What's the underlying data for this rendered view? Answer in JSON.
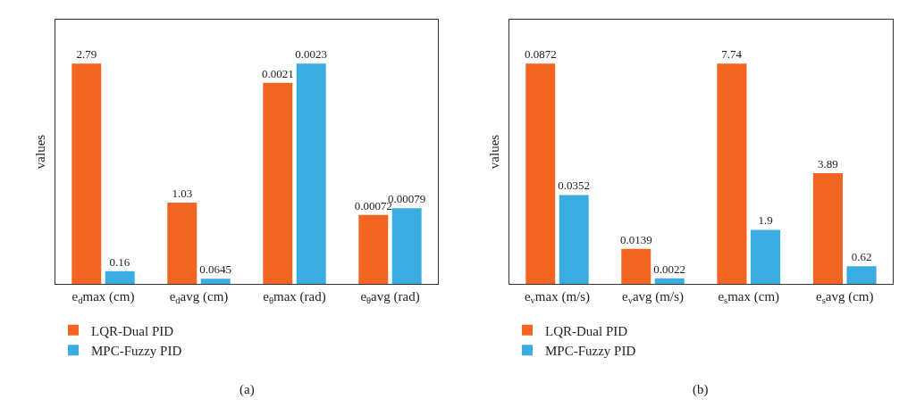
{
  "chart_data": [
    {
      "type": "bar",
      "ylabel": "values",
      "data_labels": true,
      "legend": "bottom left",
      "grid": false,
      "categories": [
        "e$_{d}$max (cm)",
        "e$_{d}$avg (cm)"
      ],
      "series": [
        {
          "name": "LQR-Dual PID",
          "color": "#f26522",
          "values": [
            2.79,
            1.03
          ]
        },
        {
          "name": "MPC-Fuzzy PID",
          "color": "#39ace1",
          "values": [
            0.16,
            0.0645
          ]
        }
      ],
      "annotations": [
        "(a)"
      ]
    },
    {
      "type": "bar",
      "data_labels": true,
      "grid": false,
      "categories": [
        "e$_{θ}$max (rad)",
        "e$_{θ}$avg (rad)"
      ],
      "series": [
        {
          "color": "#f26522",
          "values": [
            0.0021,
            0.00072
          ]
        },
        {
          "color": "#39ace1",
          "values": [
            0.0023,
            0.00079
          ]
        }
      ]
    },
    {
      "type": "bar",
      "ylabel": "values",
      "data_labels": true,
      "legend": "bottom left",
      "grid": false,
      "categories": [
        "e$_{v}$max (m/s)",
        "e$_{v}$avg (m/s)"
      ],
      "series": [
        {
          "name": "LQR-Dual PID",
          "color": "#f26522",
          "values": [
            0.0872,
            0.0139
          ]
        },
        {
          "name": "MPC-Fuzzy PID",
          "color": "#39ace1",
          "values": [
            0.0352,
            0.0022
          ]
        }
      ],
      "annotations": [
        "(b)"
      ]
    },
    {
      "type": "bar",
      "data_labels": true,
      "grid": false,
      "categories": [
        "e$_{s}$max (cm)",
        "e$_{s}$avg (cm)"
      ],
      "series": [
        {
          "color": "#f26522",
          "values": [
            7.74,
            3.89
          ]
        },
        {
          "color": "#39ace1",
          "values": [
            1.9,
            0.62
          ]
        }
      ]
    }
  ]
}
